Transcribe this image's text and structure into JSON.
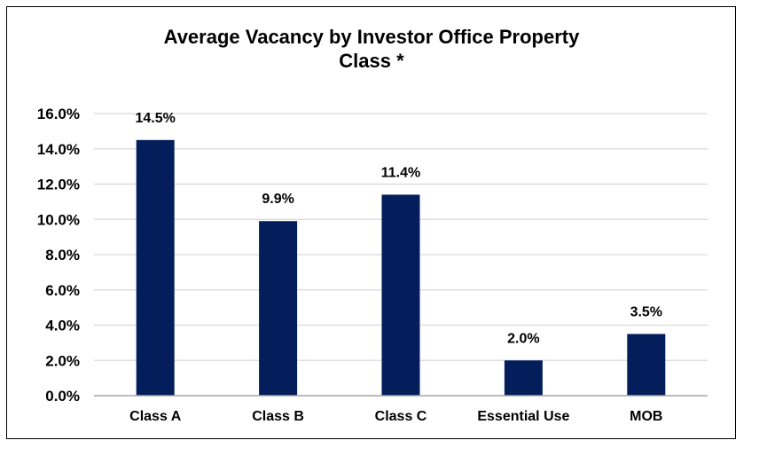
{
  "chart_data": {
    "type": "bar",
    "title_lines": [
      "Average Vacancy by Investor Office Property",
      "Class *"
    ],
    "categories": [
      "Class A",
      "Class B",
      "Class C",
      "Essential Use",
      "MOB"
    ],
    "values": [
      14.5,
      9.9,
      11.4,
      2.0,
      3.5
    ],
    "data_labels": [
      "14.5%",
      "9.9%",
      "11.4%",
      "2.0%",
      "3.5%"
    ],
    "y_ticks": [
      0,
      2,
      4,
      6,
      8,
      10,
      12,
      14,
      16
    ],
    "y_tick_labels": [
      "0.0%",
      "2.0%",
      "4.0%",
      "6.0%",
      "8.0%",
      "10.0%",
      "12.0%",
      "14.0%",
      "16.0%"
    ],
    "ylim": [
      0,
      16
    ],
    "xlabel": "",
    "ylabel": "",
    "grid": true,
    "legend": "none",
    "colors": {
      "bar": "#041E5B",
      "grid": "#D9D9D9",
      "axis": "#A6A6A6",
      "text": "#000000"
    }
  }
}
